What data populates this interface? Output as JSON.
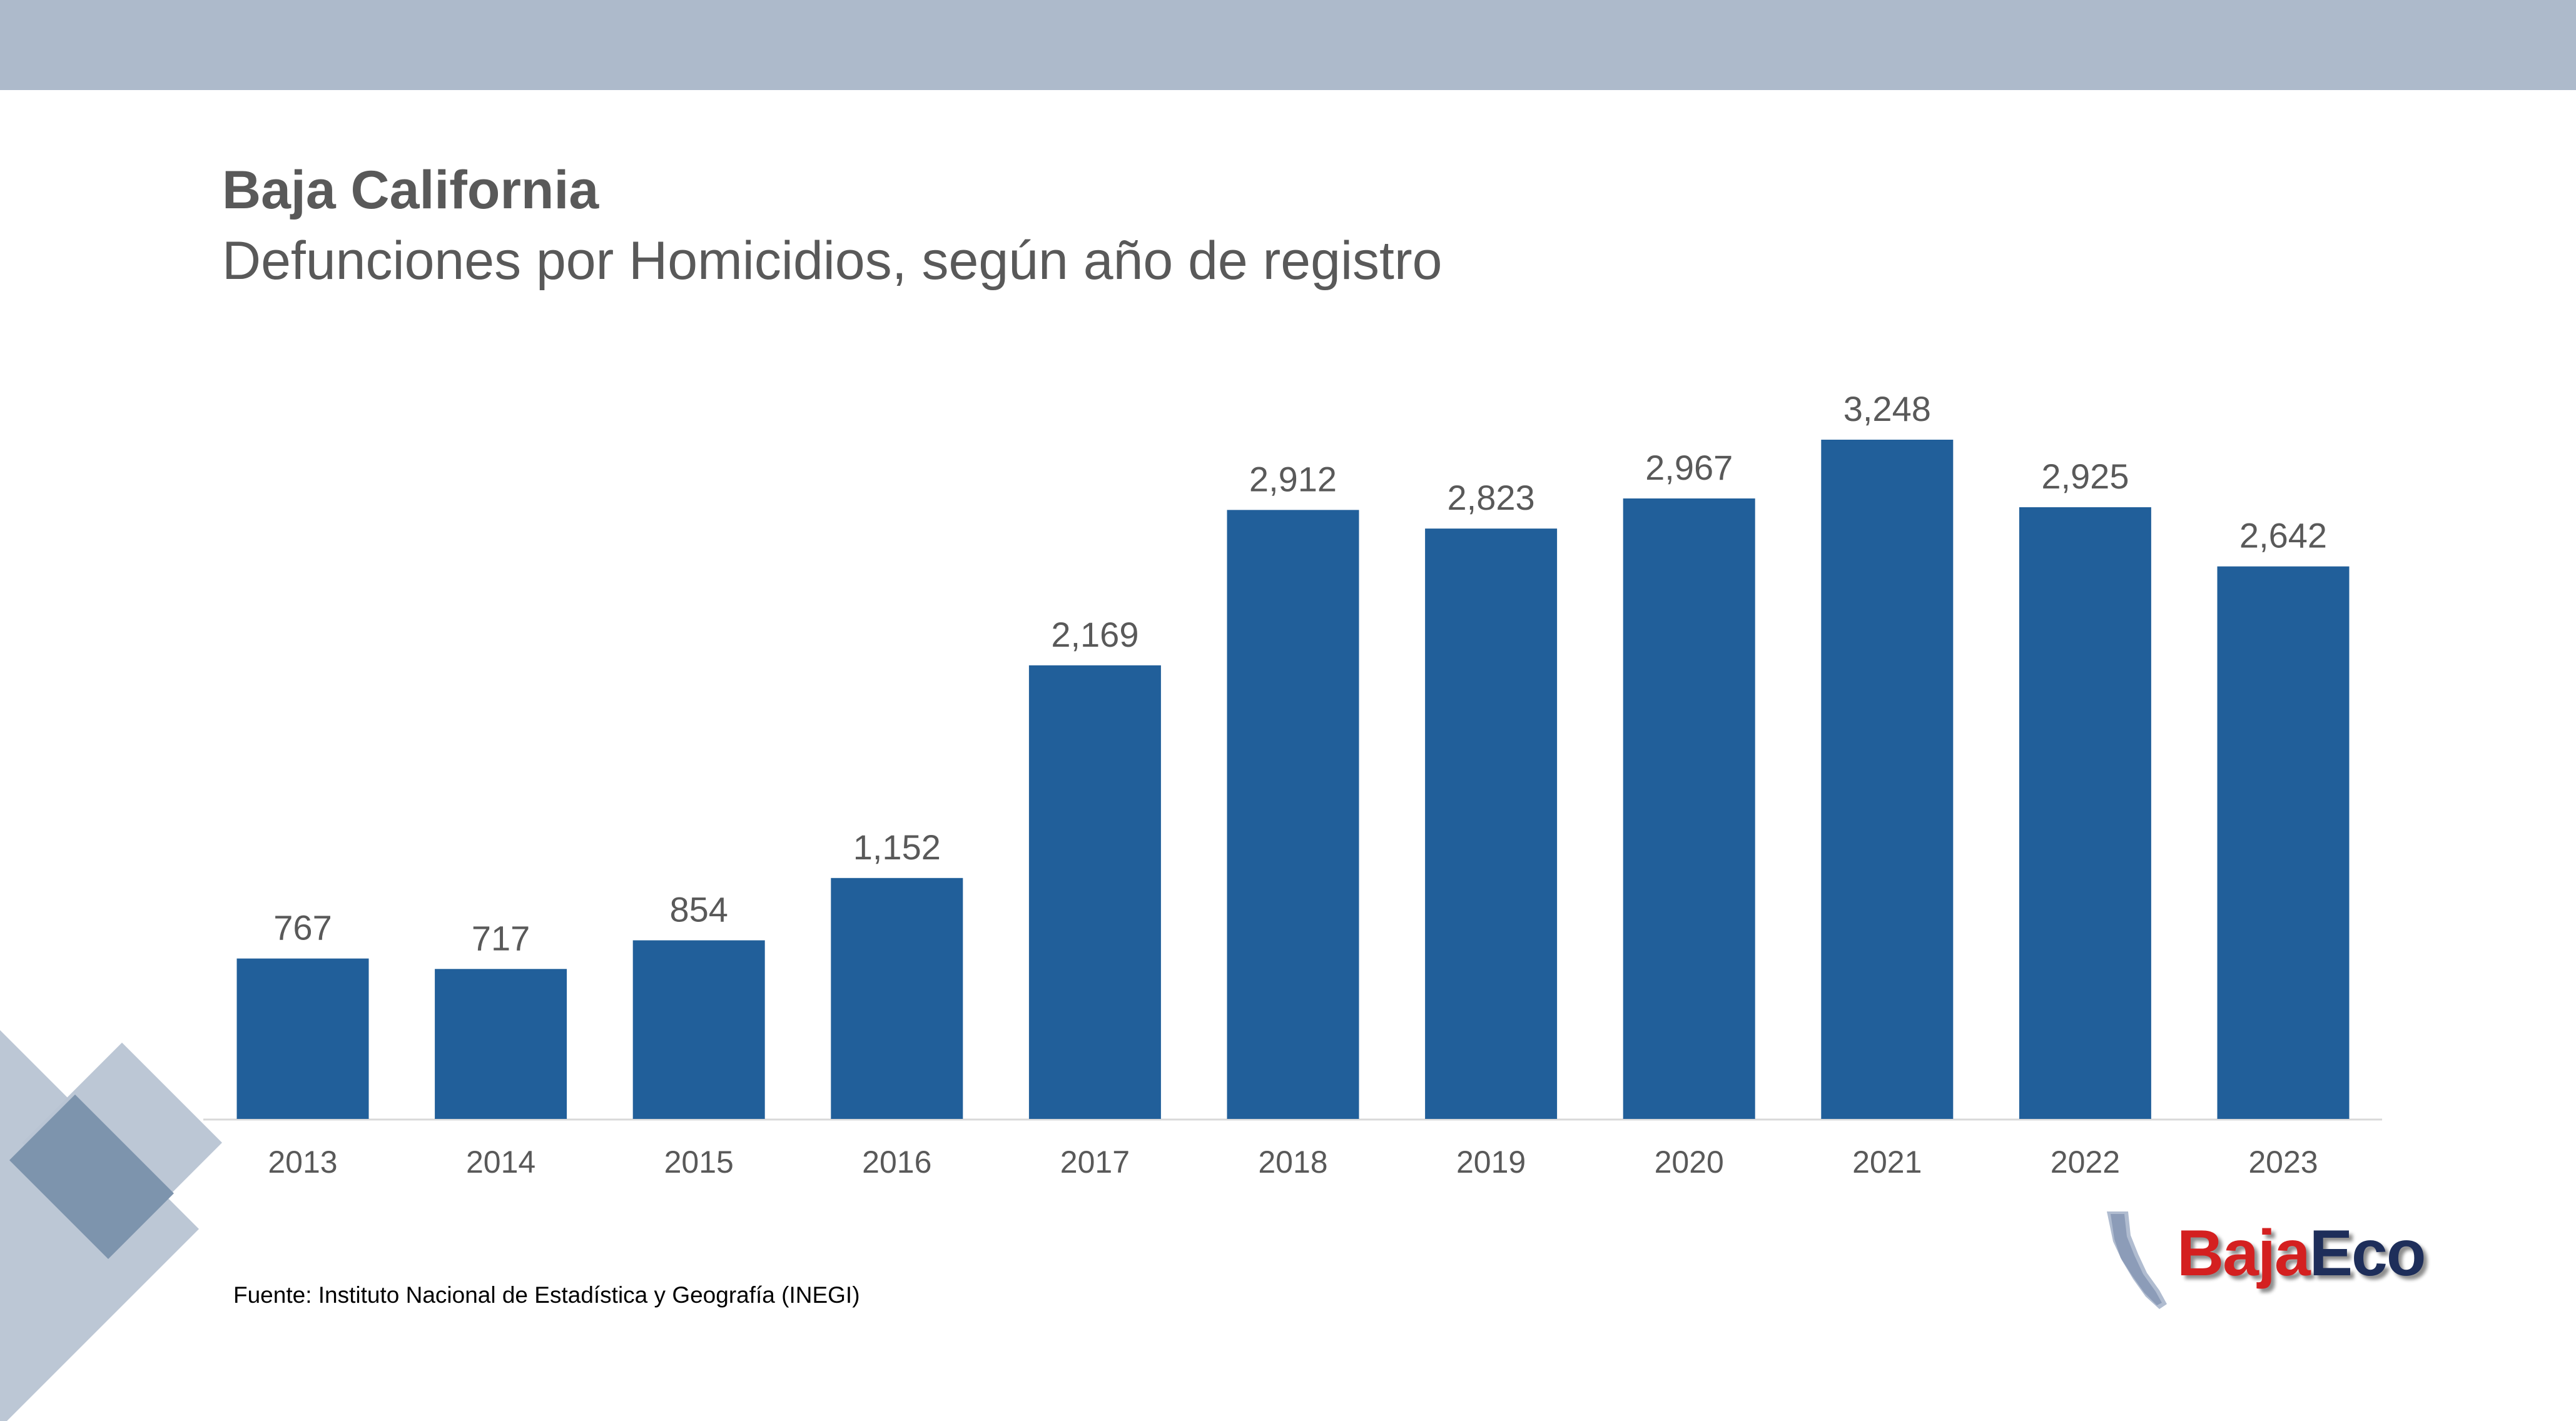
{
  "header": {
    "title": "Baja California",
    "subtitle": "Defunciones por Homicidios, según año de registro"
  },
  "source": "Fuente: Instituto Nacional de Estadística y Geografía (INEGI)",
  "logo": {
    "part1": "Baja",
    "part2": "Eco"
  },
  "colors": {
    "top_band": "#adbacb",
    "bar": "#215f9a",
    "axis": "#d9d9d9",
    "text": "#595959",
    "deco_light": "#b8c4d3",
    "deco_dark": "#7d94ad",
    "logo_red": "#d42020",
    "logo_navy": "#1e2e5a"
  },
  "chart_data": {
    "type": "bar",
    "title": "Defunciones por Homicidios, según año de registro",
    "categories": [
      "2013",
      "2014",
      "2015",
      "2016",
      "2017",
      "2018",
      "2019",
      "2020",
      "2021",
      "2022",
      "2023"
    ],
    "values": [
      767,
      717,
      854,
      1152,
      2169,
      2912,
      2823,
      2967,
      3248,
      2925,
      2642
    ],
    "data_labels": [
      "767",
      "717",
      "854",
      "1,152",
      "2,169",
      "2,912",
      "2,823",
      "2,967",
      "3,248",
      "2,925",
      "2,642"
    ],
    "xlabel": "",
    "ylabel": "",
    "ylim": [
      0,
      3248
    ],
    "grid": false,
    "legend": "none"
  }
}
